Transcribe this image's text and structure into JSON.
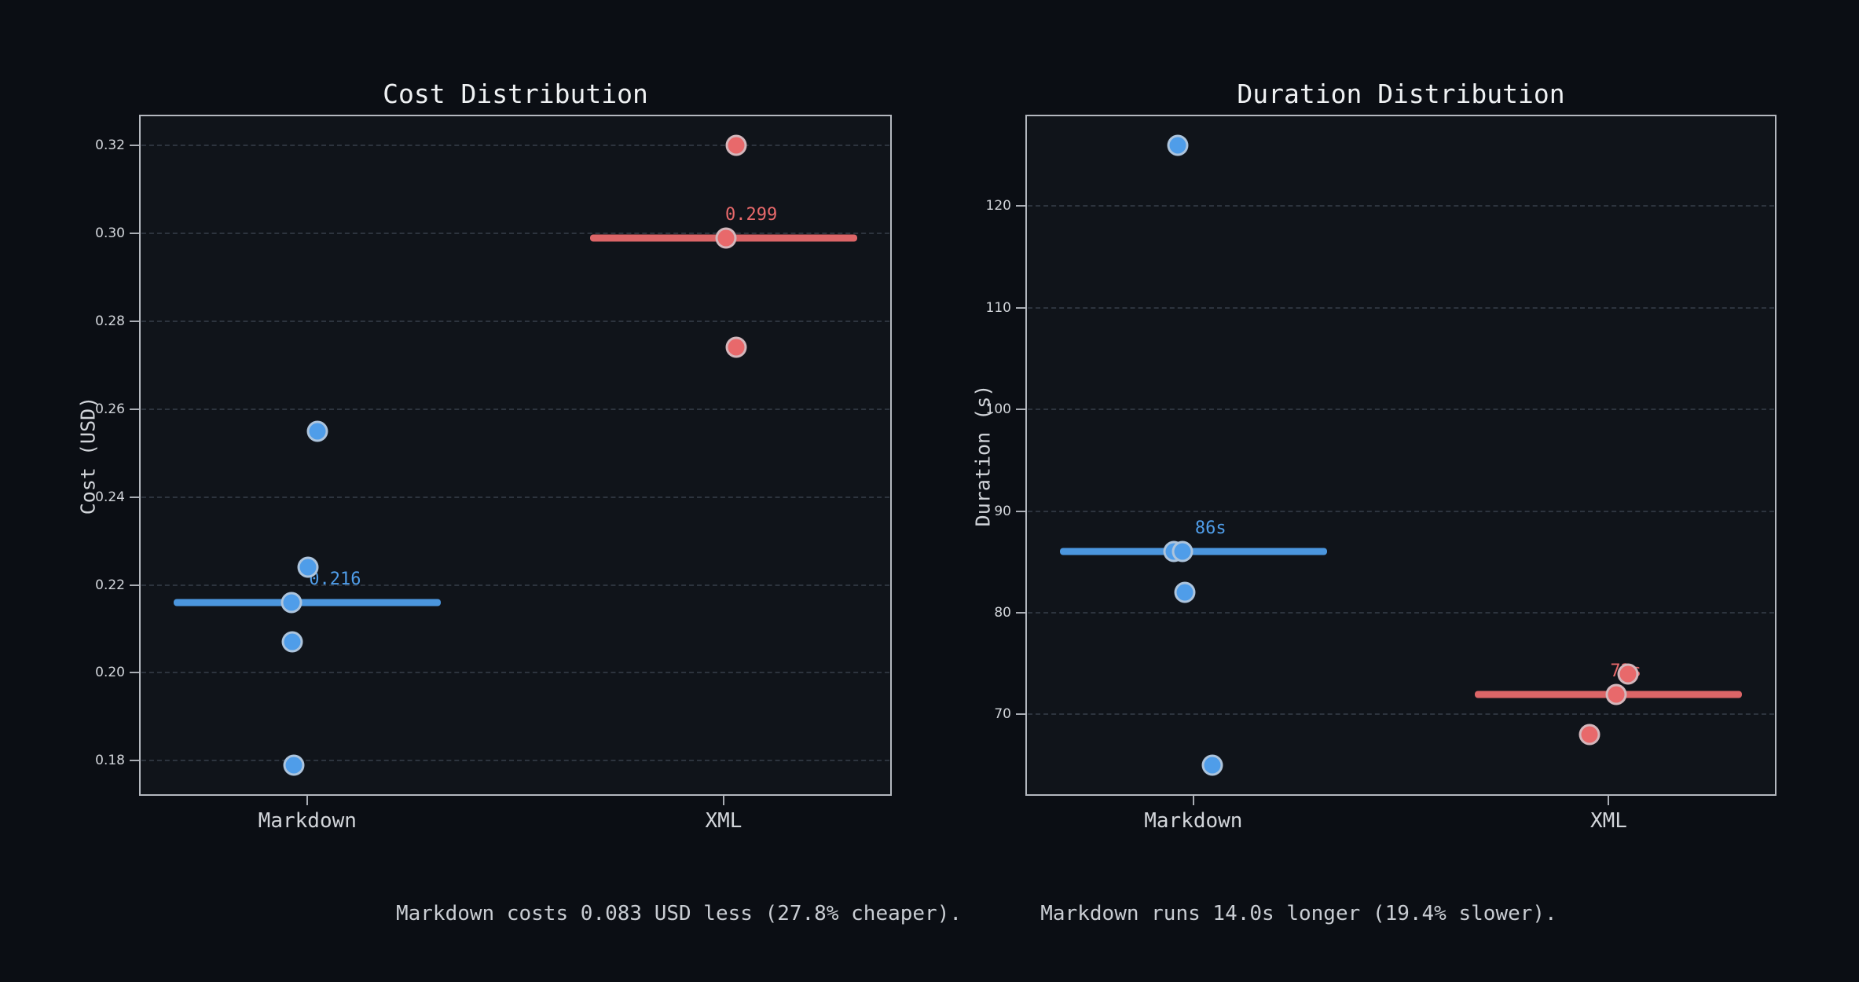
{
  "figure": {
    "background": "#0b0e14",
    "plot_background": "#10141a",
    "spine_color": "#b4b8bf",
    "grid_color": "#2d343e",
    "text_color": "#d2d5da",
    "title_color": "#eff1f3"
  },
  "colors": {
    "markdown": "#4f9de9",
    "xml": "#e8696b"
  },
  "annotations": {
    "cost": "Markdown costs 0.083 USD less (27.8% cheaper).",
    "duration": "Markdown runs 14.0s longer (19.4% slower)."
  },
  "chart_data": [
    {
      "type": "scatter",
      "title": "Cost Distribution",
      "ylabel": "Cost (USD)",
      "categories": [
        "Markdown",
        "XML"
      ],
      "ylim": [
        0.172,
        0.327
      ],
      "yticks": [
        0.18,
        0.2,
        0.22,
        0.24,
        0.26,
        0.28,
        0.3,
        0.32
      ],
      "ytick_labels": [
        "0.18",
        "0.20",
        "0.22",
        "0.24",
        "0.26",
        "0.28",
        "0.30",
        "0.32"
      ],
      "grid": true,
      "series": [
        {
          "name": "Markdown",
          "color_key": "markdown",
          "median": 0.216,
          "median_label": "0.216",
          "points": [
            {
              "y": 0.255,
              "dx": 13
            },
            {
              "y": 0.224,
              "dx": 1
            },
            {
              "y": 0.216,
              "dx": -20
            },
            {
              "y": 0.207,
              "dx": -19
            },
            {
              "y": 0.179,
              "dx": -17
            }
          ]
        },
        {
          "name": "XML",
          "color_key": "xml",
          "median": 0.299,
          "median_label": "0.299",
          "points": [
            {
              "y": 0.32,
              "dx": 16
            },
            {
              "y": 0.299,
              "dx": 3
            },
            {
              "y": 0.274,
              "dx": 16
            }
          ]
        }
      ]
    },
    {
      "type": "scatter",
      "title": "Duration Distribution",
      "ylabel": "Duration (s)",
      "categories": [
        "Markdown",
        "XML"
      ],
      "ylim": [
        62,
        129
      ],
      "yticks": [
        70,
        80,
        90,
        100,
        110,
        120
      ],
      "ytick_labels": [
        "70",
        "80",
        "90",
        "100",
        "110",
        "120"
      ],
      "grid": true,
      "series": [
        {
          "name": "Markdown",
          "color_key": "markdown",
          "median": 86,
          "median_label": "86s",
          "points": [
            {
              "y": 126,
              "dx": -20
            },
            {
              "y": 86,
              "dx": -25
            },
            {
              "y": 86,
              "dx": -14
            },
            {
              "y": 82,
              "dx": -11
            },
            {
              "y": 65,
              "dx": 24
            }
          ]
        },
        {
          "name": "XML",
          "color_key": "xml",
          "median": 72,
          "median_label": "72s",
          "points": [
            {
              "y": 74,
              "dx": 25
            },
            {
              "y": 72,
              "dx": 10
            },
            {
              "y": 68,
              "dx": -24
            }
          ]
        }
      ]
    }
  ]
}
